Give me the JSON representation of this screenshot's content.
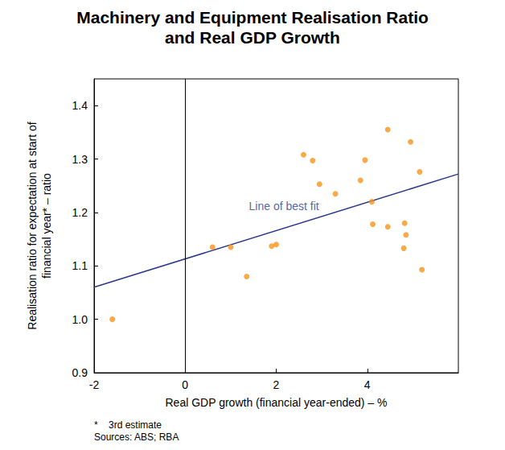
{
  "chart_data": {
    "type": "scatter",
    "title": "Machinery and Equipment Realisation Ratio\nand Real GDP Growth",
    "x_label": "Real GDP growth (financial year-ended) – %",
    "y_label": "Realisation ratio for expectation at start of\nfinancial year* – ratio",
    "footnotes": [
      "*    3rd estimate",
      "Sources: ABS; RBA"
    ],
    "annotations": [
      {
        "text": "Line of best fit",
        "x": 1.4,
        "y": 1.212
      }
    ],
    "xlim": [
      -2,
      6
    ],
    "xticks": [
      -2,
      0,
      2,
      4
    ],
    "ylim": [
      0.9,
      1.45
    ],
    "yticks": [
      0.9,
      {
        "value": 1.0,
        "label": "1.0"
      },
      1.1,
      1.2,
      1.3,
      1.4
    ],
    "grid": false,
    "series": [
      {
        "type": "scatter",
        "color": "#f7941d",
        "marker": "circle",
        "x": [
          -1.6,
          0.6,
          1.0,
          1.35,
          1.9,
          2.0,
          2.6,
          2.8,
          2.95,
          3.3,
          3.85,
          3.95,
          4.1,
          4.12,
          4.45,
          4.45,
          4.8,
          4.82,
          4.85,
          4.95,
          5.15,
          5.2
        ],
        "values": [
          1.0,
          1.135,
          1.135,
          1.08,
          1.137,
          1.14,
          1.308,
          1.297,
          1.253,
          1.235,
          1.26,
          1.298,
          1.22,
          1.178,
          1.355,
          1.173,
          1.133,
          1.18,
          1.158,
          1.332,
          1.276,
          1.093
        ]
      },
      {
        "type": "line",
        "color": "#2b3990",
        "line_style": "solid",
        "x": [
          -2,
          6
        ],
        "values": [
          1.06,
          1.272
        ]
      }
    ]
  }
}
